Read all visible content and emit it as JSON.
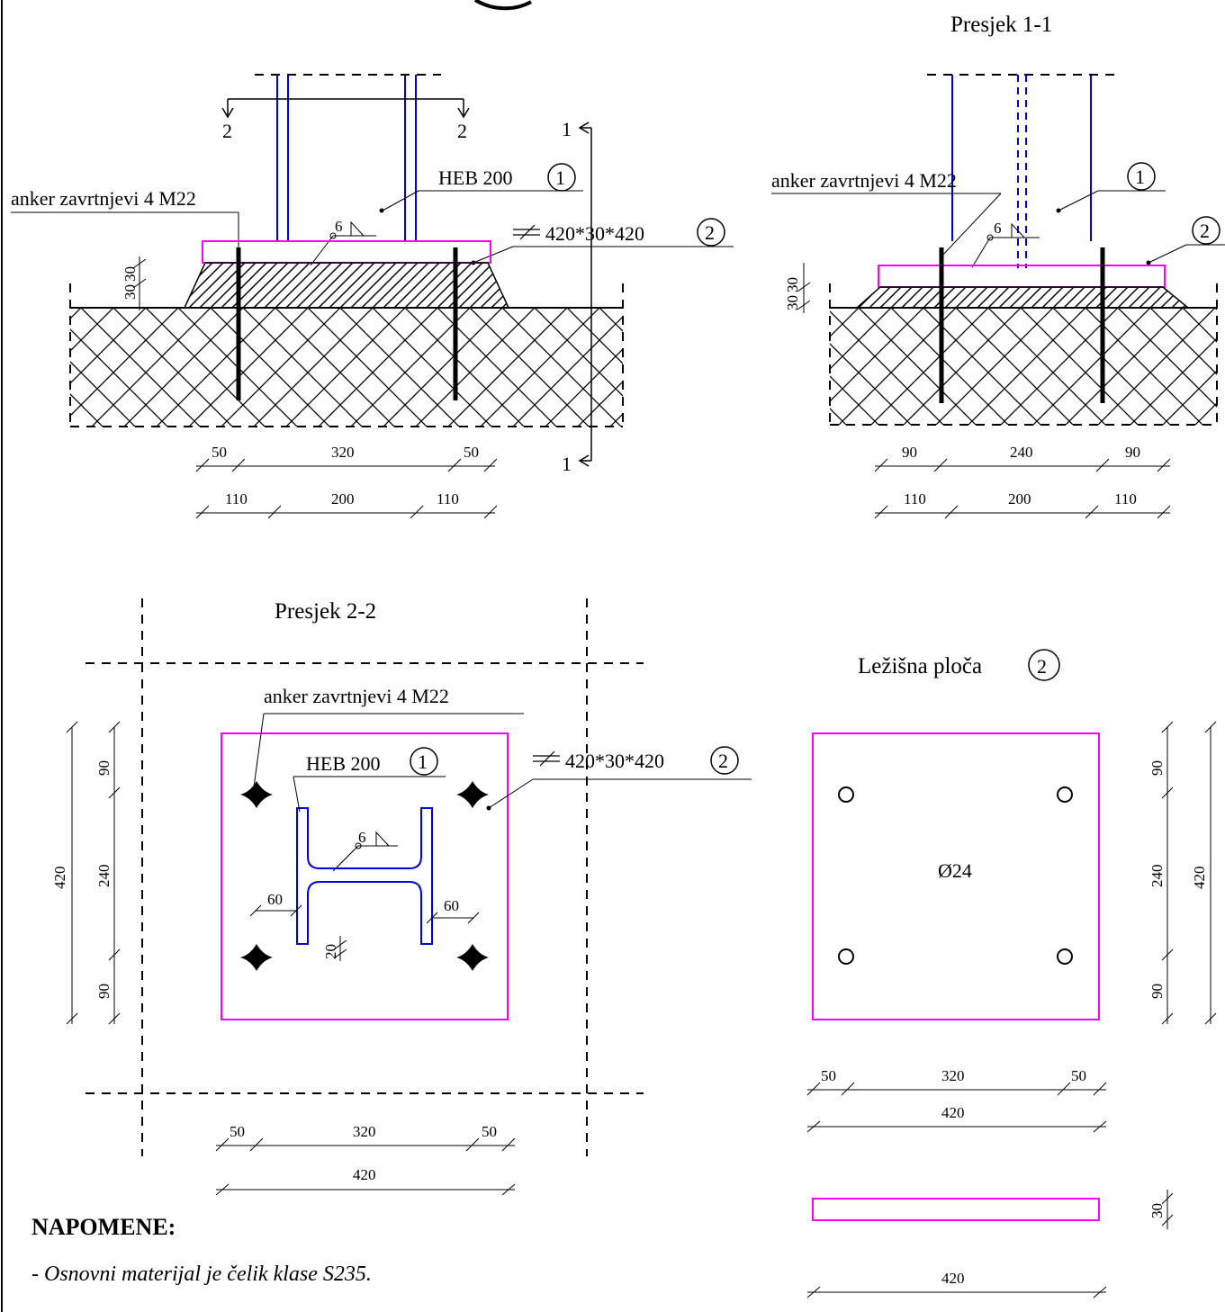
{
  "colors": {
    "plate": "#ff00ff",
    "profile": "#0000dd",
    "line": "#000000"
  },
  "view_elevation": {
    "section_2_left": "2",
    "section_2_right": "2",
    "section_1_top": "1",
    "section_1_bottom": "1",
    "anchor_label": "anker zavrtnjevi 4 M22",
    "profile_label": "HEB 200",
    "profile_mark": "1",
    "plate_label": "420*30*420",
    "plate_mark": "2",
    "weld": "6",
    "dim_grout": "30",
    "dim_plate": "30",
    "row1": [
      "50",
      "320",
      "50"
    ],
    "row2": [
      "110",
      "200",
      "110"
    ]
  },
  "view_section_1_1": {
    "title": "Presjek 1-1",
    "anchor_label": "anker zavrtnjevi 4 M22",
    "profile_mark": "1",
    "plate_mark": "2",
    "weld": "6",
    "dim_grout": "30",
    "dim_plate": "30",
    "row1": [
      "90",
      "240",
      "90"
    ],
    "row2": [
      "110",
      "200",
      "110"
    ]
  },
  "view_section_2_2": {
    "title": "Presjek 2-2",
    "anchor_label": "anker zavrtnjevi 4 M22",
    "profile_label": "HEB 200",
    "profile_mark": "1",
    "plate_label": "420*30*420",
    "plate_mark": "2",
    "weld": "6",
    "dim_flange_left": "60",
    "dim_flange_right": "60",
    "dim_gap": "20",
    "vert_outer": "420",
    "vert_inner": [
      "90",
      "240",
      "90"
    ],
    "row1": [
      "50",
      "320",
      "50"
    ],
    "row2": "420"
  },
  "view_plate": {
    "title": "Ležišna ploča",
    "mark": "2",
    "hole": "Ø24",
    "vert_inner": [
      "90",
      "240",
      "90"
    ],
    "vert_outer": "420",
    "row1": [
      "50",
      "320",
      "50"
    ],
    "row2": "420",
    "thickness": "30",
    "length": "420"
  },
  "notes": {
    "heading": "NAPOMENE:",
    "items": [
      "- Osnovni materijal je čelik klase S235."
    ]
  }
}
